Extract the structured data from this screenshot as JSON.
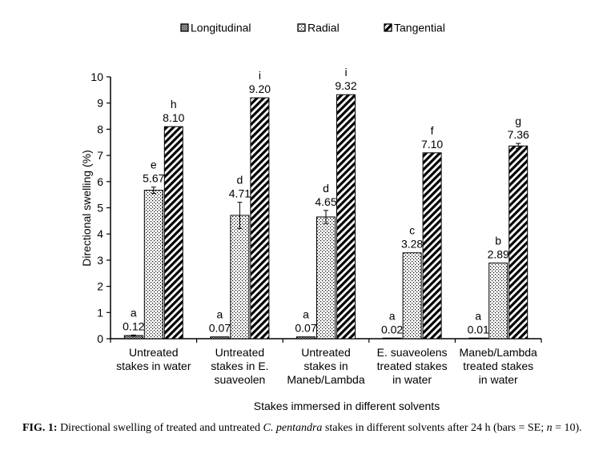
{
  "chart_data": {
    "type": "bar",
    "ylabel": "Directional swelling (%)",
    "xlabel": "Stakes immersed in different solvents",
    "ylim": [
      0,
      10
    ],
    "yticks": [
      0,
      1,
      2,
      3,
      4,
      5,
      6,
      7,
      8,
      9,
      10
    ],
    "legend_position": "top",
    "categories": [
      [
        "Untreated",
        "stakes in water"
      ],
      [
        "Untreated",
        "stakes in E.",
        "suaveolen"
      ],
      [
        "Untreated",
        "stakes in",
        "Maneb/Lambda"
      ],
      [
        "E. suaveolens",
        "treated stakes",
        "in water"
      ],
      [
        "Maneb/Lambda",
        "treated stakes",
        "in water"
      ]
    ],
    "series": [
      {
        "name": "Longitudinal",
        "pattern": "dense-dots",
        "values": [
          0.12,
          0.07,
          0.07,
          0.02,
          0.01
        ],
        "labels": [
          "0.12",
          "0.07",
          "0.07",
          "0.02",
          "0.01"
        ],
        "letters": [
          "a",
          "a",
          "a",
          "a",
          "a"
        ],
        "errors": [
          0.02,
          0.0,
          0.0,
          0.0,
          0.0
        ]
      },
      {
        "name": "Radial",
        "pattern": "dots",
        "values": [
          5.67,
          4.71,
          4.65,
          3.28,
          2.89
        ],
        "labels": [
          "5.67",
          "4.71",
          "4.65",
          "3.28",
          "2.89"
        ],
        "letters": [
          "e",
          "d",
          "d",
          "c",
          "b"
        ],
        "errors": [
          0.12,
          0.5,
          0.25,
          0.0,
          0.0
        ]
      },
      {
        "name": "Tangential",
        "pattern": "diagonal-stripes",
        "values": [
          8.1,
          9.2,
          9.32,
          7.1,
          7.36
        ],
        "labels": [
          "8.10",
          "9.20",
          "9.32",
          "7.10",
          "7.36"
        ],
        "letters": [
          "h",
          "i",
          "i",
          "f",
          "g"
        ],
        "errors": [
          0.0,
          0.0,
          0.0,
          0.0,
          0.1
        ]
      }
    ]
  },
  "caption": {
    "label": "FIG. 1:",
    "text_before": " Directional swelling of treated and untreated ",
    "species": "C. pentandra",
    "text_after": " stakes in different solvents after 24 h (bars = SE; ",
    "n_var": "n",
    "n_rest": " = 10)."
  }
}
